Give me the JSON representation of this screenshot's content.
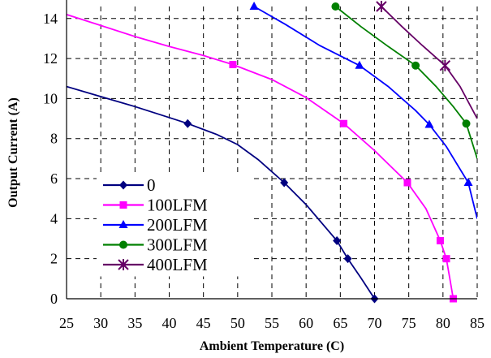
{
  "chart_data": {
    "type": "line",
    "xlabel": "Ambient Temperature (C)",
    "ylabel": "Output Current (A)",
    "xlim": [
      25,
      85
    ],
    "ylim": [
      0,
      14.6
    ],
    "xticks": [
      25,
      30,
      35,
      40,
      45,
      50,
      55,
      60,
      65,
      70,
      75,
      80,
      85
    ],
    "yticks": [
      0,
      2,
      4,
      6,
      8,
      10,
      12,
      14
    ],
    "grid": true,
    "legend_position": "bottom-left",
    "series": [
      {
        "name": "0",
        "color": "#000080",
        "marker": "diamond",
        "curve": [
          [
            25,
            10.6
          ],
          [
            30,
            10.1
          ],
          [
            35,
            9.6
          ],
          [
            40,
            9.05
          ],
          [
            42.7,
            8.75
          ],
          [
            47,
            8.2
          ],
          [
            50,
            7.7
          ],
          [
            53,
            6.95
          ],
          [
            56.8,
            5.8
          ],
          [
            60,
            4.7
          ],
          [
            62,
            3.9
          ],
          [
            64.5,
            2.9
          ],
          [
            66.1,
            2.0
          ],
          [
            68,
            1.05
          ],
          [
            70,
            0.0
          ]
        ],
        "markers": [
          [
            42.7,
            8.75
          ],
          [
            56.8,
            5.8
          ],
          [
            64.5,
            2.9
          ],
          [
            66.1,
            2.0
          ],
          [
            70,
            0.0
          ]
        ]
      },
      {
        "name": "100LFM",
        "color": "#FF00FF",
        "marker": "square",
        "curve": [
          [
            25,
            14.2
          ],
          [
            30,
            13.65
          ],
          [
            35,
            13.1
          ],
          [
            40,
            12.6
          ],
          [
            45,
            12.15
          ],
          [
            49.3,
            11.7
          ],
          [
            55,
            10.95
          ],
          [
            60,
            10.05
          ],
          [
            65.5,
            8.75
          ],
          [
            70,
            7.4
          ],
          [
            74.8,
            5.8
          ],
          [
            77.5,
            4.5
          ],
          [
            79.6,
            2.9
          ],
          [
            80.5,
            2.0
          ],
          [
            81,
            1.0
          ],
          [
            81.5,
            0.0
          ]
        ],
        "markers": [
          [
            49.3,
            11.7
          ],
          [
            65.5,
            8.75
          ],
          [
            74.8,
            5.8
          ],
          [
            79.6,
            2.9
          ],
          [
            80.5,
            2.0
          ],
          [
            81.5,
            0.0
          ]
        ]
      },
      {
        "name": "200LFM",
        "color": "#0000FF",
        "marker": "triangle",
        "curve": [
          [
            52.4,
            14.6
          ],
          [
            57,
            13.7
          ],
          [
            62,
            12.65
          ],
          [
            67.8,
            11.65
          ],
          [
            72,
            10.6
          ],
          [
            76,
            9.4
          ],
          [
            78,
            8.7
          ],
          [
            80.5,
            7.6
          ],
          [
            83.7,
            5.8
          ],
          [
            85,
            4.0
          ]
        ],
        "markers": [
          [
            52.4,
            14.6
          ],
          [
            67.8,
            11.65
          ],
          [
            78,
            8.7
          ],
          [
            83.7,
            5.8
          ]
        ]
      },
      {
        "name": "300LFM",
        "color": "#008000",
        "marker": "circle",
        "curve": [
          [
            64.3,
            14.6
          ],
          [
            68,
            13.6
          ],
          [
            72,
            12.6
          ],
          [
            76,
            11.65
          ],
          [
            79,
            10.6
          ],
          [
            81.5,
            9.6
          ],
          [
            83.4,
            8.75
          ],
          [
            85,
            7.0
          ]
        ],
        "markers": [
          [
            64.3,
            14.6
          ],
          [
            76,
            11.65
          ],
          [
            83.4,
            8.75
          ]
        ]
      },
      {
        "name": "400LFM",
        "color": "#660066",
        "marker": "star",
        "curve": [
          [
            71,
            14.6
          ],
          [
            74,
            13.6
          ],
          [
            77,
            12.65
          ],
          [
            80.3,
            11.65
          ],
          [
            82.5,
            10.6
          ],
          [
            85,
            9.0
          ]
        ],
        "markers": [
          [
            71,
            14.6
          ],
          [
            80.3,
            11.65
          ]
        ]
      }
    ]
  }
}
